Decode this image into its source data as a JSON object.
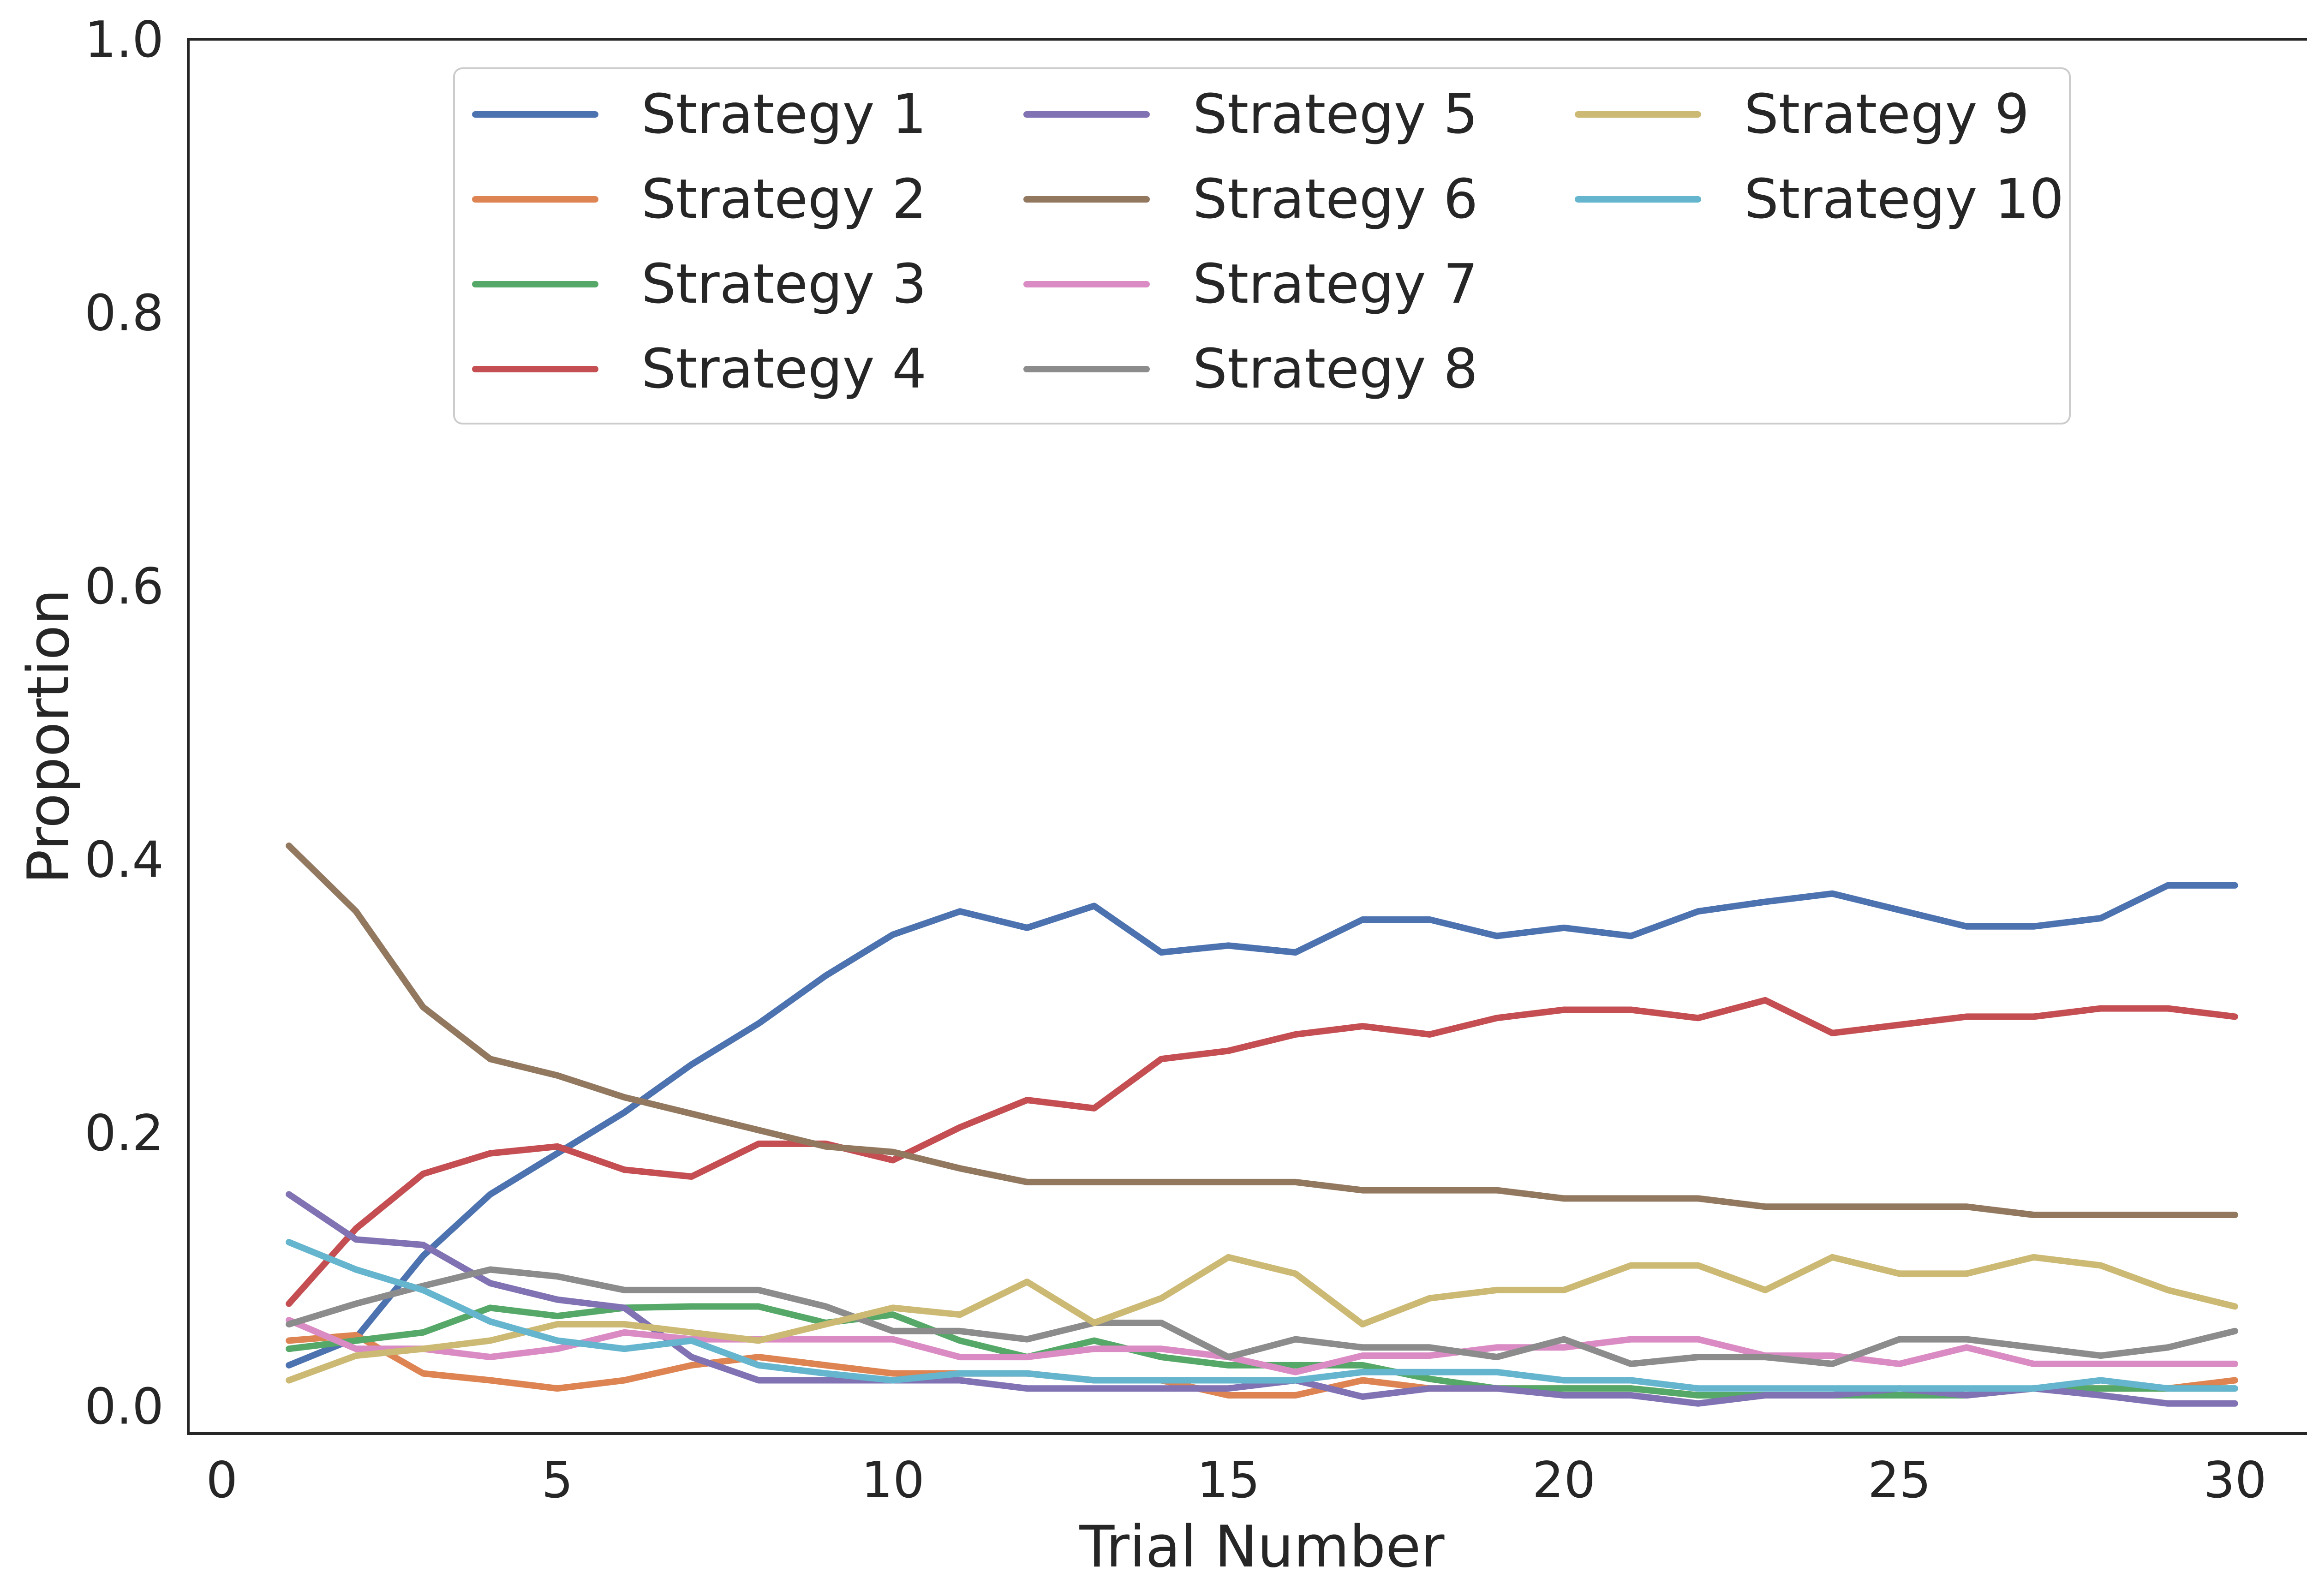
{
  "chart_data": {
    "type": "line",
    "title": "",
    "xlabel": "Trial Number",
    "ylabel": "Proportion",
    "xlim": [
      -0.5,
      31.5
    ],
    "ylim": [
      -0.02,
      1.0
    ],
    "xticks": [
      0,
      5,
      10,
      15,
      20,
      25,
      30
    ],
    "xtick_labels": [
      "0",
      "5",
      "10",
      "15",
      "20",
      "25",
      "30"
    ],
    "yticks": [
      0.0,
      0.2,
      0.4,
      0.6,
      0.8,
      1.0
    ],
    "ytick_labels": [
      "0.0",
      "0.2",
      "0.4",
      "0.6",
      "0.8",
      "1.0"
    ],
    "grid": false,
    "legend_position": "top-center",
    "legend_columns": 3,
    "x": [
      1,
      2,
      3,
      4,
      5,
      6,
      7,
      8,
      9,
      10,
      11,
      12,
      13,
      14,
      15,
      16,
      17,
      18,
      19,
      20,
      21,
      22,
      23,
      24,
      25,
      26,
      27,
      28,
      29,
      30
    ],
    "series": [
      {
        "name": "Strategy 1",
        "color": "#4c72b0",
        "values": [
          0.03,
          0.05,
          0.11,
          0.155,
          0.185,
          0.215,
          0.25,
          0.28,
          0.315,
          0.345,
          0.362,
          0.35,
          0.366,
          0.332,
          0.337,
          0.332,
          0.356,
          0.356,
          0.344,
          0.35,
          0.344,
          0.362,
          0.369,
          0.375,
          0.363,
          0.351,
          0.351,
          0.357,
          0.381,
          0.381
        ]
      },
      {
        "name": "Strategy 2",
        "color": "#dd8452",
        "values": [
          0.048,
          0.052,
          0.024,
          0.019,
          0.013,
          0.019,
          0.03,
          0.036,
          0.03,
          0.024,
          0.024,
          0.024,
          0.019,
          0.019,
          0.008,
          0.008,
          0.019,
          0.013,
          0.013,
          0.013,
          0.013,
          0.008,
          0.008,
          0.008,
          0.008,
          0.008,
          0.013,
          0.013,
          0.013,
          0.019
        ]
      },
      {
        "name": "Strategy 3",
        "color": "#55a868",
        "values": [
          0.042,
          0.048,
          0.054,
          0.072,
          0.066,
          0.072,
          0.073,
          0.073,
          0.061,
          0.067,
          0.048,
          0.036,
          0.048,
          0.036,
          0.03,
          0.03,
          0.03,
          0.02,
          0.013,
          0.013,
          0.013,
          0.008,
          0.008,
          0.008,
          0.008,
          0.008,
          0.013,
          0.013,
          0.013,
          0.013
        ]
      },
      {
        "name": "Strategy 4",
        "color": "#c44e52",
        "values": [
          0.075,
          0.13,
          0.17,
          0.185,
          0.19,
          0.173,
          0.168,
          0.192,
          0.192,
          0.18,
          0.204,
          0.224,
          0.218,
          0.254,
          0.26,
          0.272,
          0.278,
          0.272,
          0.284,
          0.29,
          0.29,
          0.284,
          0.297,
          0.273,
          0.279,
          0.285,
          0.285,
          0.291,
          0.291,
          0.285
        ]
      },
      {
        "name": "Strategy 5",
        "color": "#8172b3",
        "values": [
          0.155,
          0.122,
          0.118,
          0.09,
          0.078,
          0.072,
          0.036,
          0.019,
          0.019,
          0.019,
          0.019,
          0.013,
          0.013,
          0.013,
          0.013,
          0.019,
          0.007,
          0.013,
          0.013,
          0.008,
          0.008,
          0.002,
          0.008,
          0.008,
          0.013,
          0.008,
          0.013,
          0.008,
          0.002,
          0.002
        ]
      },
      {
        "name": "Strategy 6",
        "color": "#937860",
        "values": [
          0.41,
          0.362,
          0.292,
          0.254,
          0.242,
          0.226,
          0.214,
          0.202,
          0.19,
          0.186,
          0.174,
          0.164,
          0.164,
          0.164,
          0.164,
          0.164,
          0.158,
          0.158,
          0.158,
          0.152,
          0.152,
          0.152,
          0.146,
          0.146,
          0.146,
          0.146,
          0.14,
          0.14,
          0.14,
          0.14
        ]
      },
      {
        "name": "Strategy 7",
        "color": "#da8bc3",
        "values": [
          0.063,
          0.042,
          0.042,
          0.036,
          0.042,
          0.054,
          0.049,
          0.049,
          0.049,
          0.049,
          0.036,
          0.036,
          0.042,
          0.042,
          0.036,
          0.025,
          0.037,
          0.037,
          0.043,
          0.043,
          0.049,
          0.049,
          0.037,
          0.037,
          0.031,
          0.043,
          0.031,
          0.031,
          0.031,
          0.031
        ]
      },
      {
        "name": "Strategy 8",
        "color": "#8c8c8c",
        "values": [
          0.06,
          0.075,
          0.088,
          0.1,
          0.095,
          0.085,
          0.085,
          0.085,
          0.073,
          0.055,
          0.055,
          0.049,
          0.061,
          0.061,
          0.036,
          0.049,
          0.043,
          0.043,
          0.036,
          0.049,
          0.031,
          0.036,
          0.036,
          0.031,
          0.049,
          0.049,
          0.043,
          0.037,
          0.043,
          0.055
        ]
      },
      {
        "name": "Strategy 9",
        "color": "#ccb974",
        "values": [
          0.019,
          0.037,
          0.042,
          0.048,
          0.06,
          0.06,
          0.054,
          0.048,
          0.06,
          0.072,
          0.067,
          0.091,
          0.061,
          0.079,
          0.109,
          0.097,
          0.06,
          0.079,
          0.085,
          0.085,
          0.103,
          0.103,
          0.085,
          0.109,
          0.097,
          0.097,
          0.109,
          0.103,
          0.085,
          0.073
        ]
      },
      {
        "name": "Strategy 10",
        "color": "#64b5cd",
        "values": [
          0.12,
          0.1,
          0.085,
          0.062,
          0.048,
          0.042,
          0.048,
          0.03,
          0.024,
          0.019,
          0.024,
          0.024,
          0.019,
          0.019,
          0.019,
          0.019,
          0.025,
          0.025,
          0.025,
          0.019,
          0.019,
          0.013,
          0.013,
          0.013,
          0.013,
          0.013,
          0.013,
          0.019,
          0.013,
          0.013
        ]
      }
    ]
  }
}
